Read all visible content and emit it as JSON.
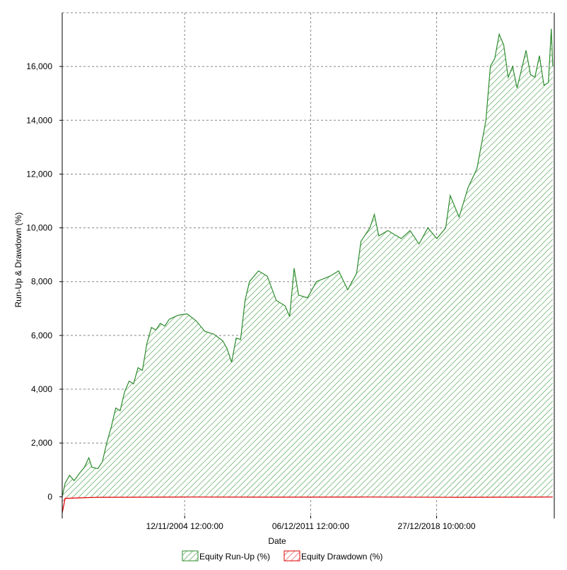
{
  "chart_data": {
    "type": "area",
    "title": "",
    "xlabel": "Date",
    "ylabel": "Run-Up & Drawdown (%)",
    "x_tick_labels": [
      "12/11/2004 12:00:00",
      "06/12/2011 12:00:00",
      "27/12/2018 10:00:00"
    ],
    "y_tick_labels": [
      "0",
      "2,000",
      "4,000",
      "6,000",
      "8,000",
      "10,000",
      "12,000",
      "14,000",
      "16,000"
    ],
    "y_ticks": [
      0,
      2000,
      4000,
      6000,
      8000,
      10000,
      12000,
      14000,
      16000
    ],
    "ylim": [
      -700,
      18000
    ],
    "grid": true,
    "legend_position": "bottom",
    "series": [
      {
        "name": "Equity Run-Up (%)",
        "color": "#2e8b2e",
        "fill": "green-hatch",
        "points": [
          [
            "1998-01-01",
            0
          ],
          [
            "1998-03-01",
            500
          ],
          [
            "1998-06-01",
            800
          ],
          [
            "1998-09-01",
            600
          ],
          [
            "1999-01-01",
            900
          ],
          [
            "1999-04-01",
            1100
          ],
          [
            "1999-07-01",
            1450
          ],
          [
            "1999-09-01",
            1100
          ],
          [
            "2000-01-01",
            1050
          ],
          [
            "2000-04-01",
            1300
          ],
          [
            "2000-07-01",
            2000
          ],
          [
            "2000-10-01",
            2600
          ],
          [
            "2001-01-01",
            3300
          ],
          [
            "2001-04-01",
            3200
          ],
          [
            "2001-07-01",
            3900
          ],
          [
            "2001-10-01",
            4300
          ],
          [
            "2002-01-01",
            4200
          ],
          [
            "2002-04-01",
            4800
          ],
          [
            "2002-07-01",
            4700
          ],
          [
            "2002-10-01",
            5700
          ],
          [
            "2003-01-01",
            6300
          ],
          [
            "2003-04-01",
            6200
          ],
          [
            "2003-07-01",
            6450
          ],
          [
            "2003-10-01",
            6350
          ],
          [
            "2004-01-01",
            6600
          ],
          [
            "2004-07-01",
            6750
          ],
          [
            "2005-01-01",
            6800
          ],
          [
            "2005-07-01",
            6550
          ],
          [
            "2006-01-01",
            6150
          ],
          [
            "2006-07-01",
            6050
          ],
          [
            "2007-01-01",
            5800
          ],
          [
            "2007-04-01",
            5500
          ],
          [
            "2007-07-01",
            5000
          ],
          [
            "2007-10-01",
            5900
          ],
          [
            "2008-01-01",
            5850
          ],
          [
            "2008-04-01",
            7300
          ],
          [
            "2008-07-01",
            8000
          ],
          [
            "2009-01-01",
            8400
          ],
          [
            "2009-07-01",
            8200
          ],
          [
            "2010-01-01",
            7300
          ],
          [
            "2010-07-01",
            7100
          ],
          [
            "2010-10-01",
            6700
          ],
          [
            "2011-01-01",
            8500
          ],
          [
            "2011-04-01",
            7500
          ],
          [
            "2011-10-01",
            7400
          ],
          [
            "2012-04-01",
            8000
          ],
          [
            "2013-01-01",
            8200
          ],
          [
            "2013-07-01",
            8400
          ],
          [
            "2014-01-01",
            7700
          ],
          [
            "2014-07-01",
            8300
          ],
          [
            "2014-10-01",
            9500
          ],
          [
            "2015-04-01",
            10000
          ],
          [
            "2015-07-01",
            10500
          ],
          [
            "2015-10-01",
            9700
          ],
          [
            "2016-04-01",
            9900
          ],
          [
            "2017-01-01",
            9600
          ],
          [
            "2017-07-01",
            9900
          ],
          [
            "2018-01-01",
            9400
          ],
          [
            "2018-07-01",
            10000
          ],
          [
            "2019-01-01",
            9600
          ],
          [
            "2019-07-01",
            10000
          ],
          [
            "2019-10-01",
            11200
          ],
          [
            "2020-01-01",
            10800
          ],
          [
            "2020-04-01",
            10400
          ],
          [
            "2020-10-01",
            11500
          ],
          [
            "2021-04-01",
            12200
          ],
          [
            "2021-10-01",
            14000
          ],
          [
            "2022-01-01",
            16000
          ],
          [
            "2022-04-01",
            16300
          ],
          [
            "2022-07-01",
            17200
          ],
          [
            "2022-10-01",
            16800
          ],
          [
            "2023-01-01",
            15600
          ],
          [
            "2023-04-01",
            16000
          ],
          [
            "2023-07-01",
            15200
          ],
          [
            "2024-01-01",
            16600
          ],
          [
            "2024-04-01",
            15700
          ],
          [
            "2024-07-01",
            15600
          ],
          [
            "2024-10-01",
            16400
          ],
          [
            "2025-01-01",
            15300
          ],
          [
            "2025-04-01",
            15400
          ],
          [
            "2025-06-01",
            17400
          ],
          [
            "2025-07-01",
            16000
          ]
        ]
      },
      {
        "name": "Equity Drawdown (%)",
        "color": "#e00000",
        "fill": "red-hatch",
        "points": [
          [
            "1998-01-01",
            -600
          ],
          [
            "1998-03-01",
            -60
          ],
          [
            "1999-01-01",
            -40
          ],
          [
            "2000-01-01",
            -20
          ],
          [
            "2005-01-01",
            -10
          ],
          [
            "2010-01-01",
            -15
          ],
          [
            "2015-01-01",
            -10
          ],
          [
            "2020-01-01",
            -20
          ],
          [
            "2025-07-01",
            -10
          ]
        ]
      }
    ]
  }
}
